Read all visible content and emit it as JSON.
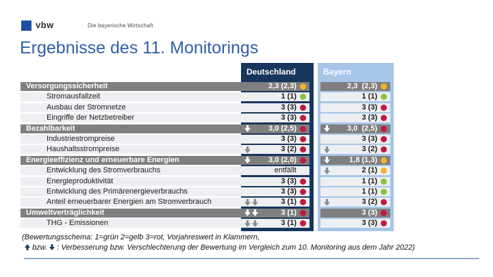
{
  "brand": {
    "logo_text": "vbw",
    "tagline": "Die bayerische Wirtschaft"
  },
  "title": "Ergebnisse des 11. Monitorings",
  "table": {
    "column_headers": [
      "Deutschland",
      "Bayern"
    ],
    "rows": [
      {
        "label": "Versorgungssicherheit",
        "type": "category",
        "de": {
          "arrows": 0,
          "value": "2,3 (2,3)",
          "dot": "yellow"
        },
        "by": {
          "arrows": 0,
          "value": "2,3  (2,3)",
          "dot": "yellow"
        }
      },
      {
        "label": "Stromausfallzeit",
        "type": "item",
        "de": {
          "arrows": 0,
          "value": "1 (1)",
          "dot": "green"
        },
        "by": {
          "arrows": 0,
          "value": "1 (1)",
          "dot": "green"
        }
      },
      {
        "label": "Ausbau der Stromnetze",
        "type": "item",
        "de": {
          "arrows": 0,
          "value": "3 (3)",
          "dot": "red"
        },
        "by": {
          "arrows": 0,
          "value": "3 (3)",
          "dot": "red"
        }
      },
      {
        "label": "Eingriffe der Netzbetreiber",
        "type": "item",
        "de": {
          "arrows": 0,
          "value": "3 (3)",
          "dot": "red"
        },
        "by": {
          "arrows": 0,
          "value": "3 (3)",
          "dot": "red"
        }
      },
      {
        "label": "Bezahlbarkeit",
        "type": "category",
        "de": {
          "arrows": 1,
          "value": "3,0 (2,5)",
          "dot": "red"
        },
        "by": {
          "arrows": 1,
          "value": "3,0  (2,5)",
          "dot": "red"
        }
      },
      {
        "label": "Industriestrompreise",
        "type": "item",
        "de": {
          "arrows": 0,
          "value": "3 (3)",
          "dot": "red"
        },
        "by": {
          "arrows": 0,
          "value": "3 (3)",
          "dot": "red"
        }
      },
      {
        "label": "Haushaltsstrompreise",
        "type": "item",
        "de": {
          "arrows": 1,
          "value": "3 (2)",
          "dot": "red"
        },
        "by": {
          "arrows": 1,
          "value": "3 (2)",
          "dot": "red"
        }
      },
      {
        "label": "Energieeffizienz und erneuerbare Energien",
        "type": "category",
        "de": {
          "arrows": 1,
          "value": "3,0 (2,0)",
          "dot": "red"
        },
        "by": {
          "arrows": 1,
          "value": "1,8 (1,3)",
          "dot": "yellow"
        }
      },
      {
        "label": "Entwicklung des Stromverbrauchs",
        "type": "item",
        "de": {
          "arrows": 0,
          "value": "entfällt",
          "dot": "none"
        },
        "by": {
          "arrows": 1,
          "value": "2 (1)",
          "dot": "yellow"
        }
      },
      {
        "label": "Energieproduktivität",
        "type": "item",
        "de": {
          "arrows": 0,
          "value": "3 (3)",
          "dot": "red"
        },
        "by": {
          "arrows": 0,
          "value": "1 (1)",
          "dot": "green"
        }
      },
      {
        "label": "Entwicklung des Primärenergieverbrauchs",
        "type": "item",
        "de": {
          "arrows": 0,
          "value": "3 (3)",
          "dot": "red"
        },
        "by": {
          "arrows": 0,
          "value": "1 (1)",
          "dot": "green"
        }
      },
      {
        "label": "Anteil erneuerbarer Energien am Stromverbrauch",
        "type": "item",
        "de": {
          "arrows": 2,
          "value": "3 (1)",
          "dot": "red"
        },
        "by": {
          "arrows": 1,
          "value": "3 (2)",
          "dot": "red"
        }
      },
      {
        "label": "Umweltverträglichkeit",
        "type": "category",
        "de": {
          "arrows": 2,
          "value": "3 (1)",
          "dot": "red"
        },
        "by": {
          "arrows": 0,
          "value": "3 (3)",
          "dot": "red"
        }
      },
      {
        "label": "THG - Emissionen",
        "type": "item",
        "de": {
          "arrows": 2,
          "value": "3 (1)",
          "dot": "red"
        },
        "by": {
          "arrows": 0,
          "value": "3 (3)",
          "dot": "red"
        }
      }
    ]
  },
  "footnote": {
    "line1": "(Bewertungsschema: 1=grün 2=gelb 3=rot, Vorjahreswert in Klammern,",
    "line2_mid": "bzw.",
    "line2_rest": ": Verbesserung bzw. Verschlechterung der Bewertung im Vergleich zum 10. Monitoring aus dem Jahr 2022)"
  },
  "colors": {
    "navy": "#17365d",
    "bayern_blue": "#a6c6e8",
    "category_gray": "#7f7f7f",
    "row_bg": "#edeff2",
    "title_blue": "#2e5fa8",
    "logo_blue": "#1f4e9f",
    "dot_red": "#c01a3f",
    "dot_yellow": "#f2b32c",
    "dot_green": "#8ac340",
    "arrow_item": "#8c8c8c",
    "arrow_category": "#ffffff",
    "rule": "#8fa9c2"
  }
}
